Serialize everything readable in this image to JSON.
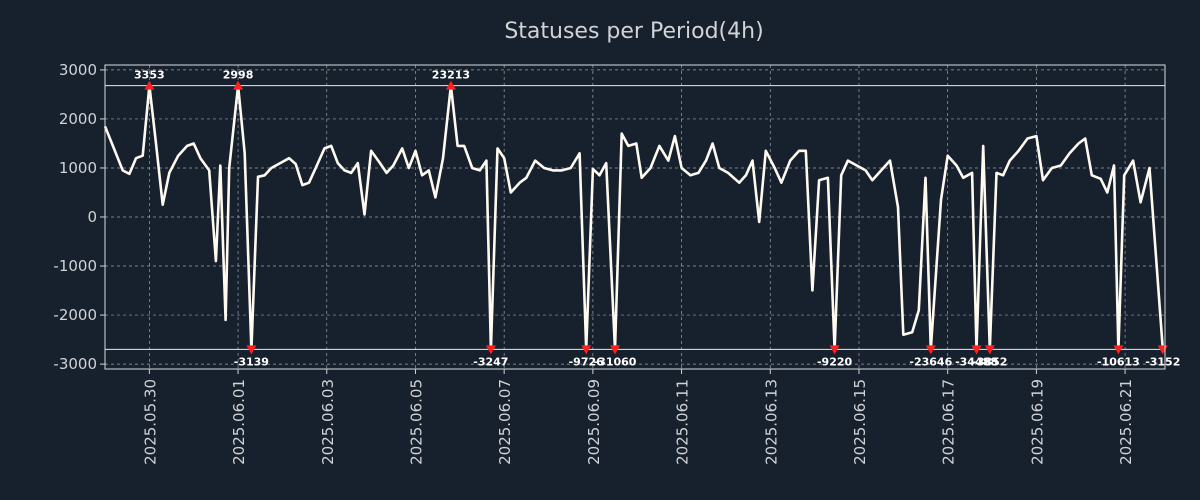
{
  "chart_data": {
    "type": "line",
    "title": "Statuses per Period(4h)",
    "xlabel": "",
    "ylabel": "",
    "ylim": [
      -3100,
      3100
    ],
    "grid": true,
    "yticks": [
      3000,
      2000,
      1000,
      0,
      -1000,
      -2000,
      -3000
    ],
    "ytick_labels": [
      "3000",
      "2000",
      "1000",
      "0",
      "-1000",
      "-2000",
      "-3000"
    ],
    "xlim_days": [
      0,
      23.9
    ],
    "xticks": [
      {
        "day": 1.0,
        "label": "2025.05.30"
      },
      {
        "day": 3.0,
        "label": "2025.06.01"
      },
      {
        "day": 5.0,
        "label": "2025.06.03"
      },
      {
        "day": 7.0,
        "label": "2025.06.05"
      },
      {
        "day": 9.0,
        "label": "2025.06.07"
      },
      {
        "day": 11.0,
        "label": "2025.06.09"
      },
      {
        "day": 13.0,
        "label": "2025.06.11"
      },
      {
        "day": 15.0,
        "label": "2025.06.13"
      },
      {
        "day": 17.0,
        "label": "2025.06.15"
      },
      {
        "day": 19.0,
        "label": "2025.06.17"
      },
      {
        "day": 21.0,
        "label": "2025.06.19"
      },
      {
        "day": 23.0,
        "label": "2025.06.21"
      }
    ],
    "upper_clip": 2680,
    "lower_clip": -2700,
    "series": [
      {
        "name": "statuses",
        "points": [
          [
            0.0,
            1850
          ],
          [
            0.2,
            1400
          ],
          [
            0.4,
            950
          ],
          [
            0.55,
            880
          ],
          [
            0.7,
            1200
          ],
          [
            0.85,
            1250
          ],
          [
            1.0,
            2680
          ],
          [
            1.15,
            1500
          ],
          [
            1.3,
            250
          ],
          [
            1.45,
            900
          ],
          [
            1.65,
            1250
          ],
          [
            1.85,
            1450
          ],
          [
            2.0,
            1500
          ],
          [
            2.15,
            1200
          ],
          [
            2.35,
            950
          ],
          [
            2.5,
            -900
          ],
          [
            2.6,
            1050
          ],
          [
            2.72,
            -2100
          ],
          [
            2.8,
            1000
          ],
          [
            3.0,
            2680
          ],
          [
            3.15,
            1300
          ],
          [
            3.3,
            -2700
          ],
          [
            3.45,
            820
          ],
          [
            3.6,
            850
          ],
          [
            3.75,
            1000
          ],
          [
            3.95,
            1100
          ],
          [
            4.15,
            1200
          ],
          [
            4.3,
            1080
          ],
          [
            4.45,
            650
          ],
          [
            4.6,
            700
          ],
          [
            4.75,
            1000
          ],
          [
            4.95,
            1400
          ],
          [
            5.1,
            1450
          ],
          [
            5.25,
            1100
          ],
          [
            5.4,
            950
          ],
          [
            5.55,
            900
          ],
          [
            5.7,
            1100
          ],
          [
            5.85,
            50
          ],
          [
            6.0,
            1350
          ],
          [
            6.2,
            1100
          ],
          [
            6.35,
            900
          ],
          [
            6.5,
            1050
          ],
          [
            6.7,
            1400
          ],
          [
            6.85,
            1000
          ],
          [
            7.0,
            1350
          ],
          [
            7.15,
            850
          ],
          [
            7.3,
            950
          ],
          [
            7.45,
            400
          ],
          [
            7.62,
            1200
          ],
          [
            7.8,
            2680
          ],
          [
            7.95,
            1450
          ],
          [
            8.1,
            1450
          ],
          [
            8.28,
            1000
          ],
          [
            8.45,
            950
          ],
          [
            8.6,
            1150
          ],
          [
            8.7,
            -2700
          ],
          [
            8.85,
            1400
          ],
          [
            9.0,
            1200
          ],
          [
            9.15,
            500
          ],
          [
            9.35,
            700
          ],
          [
            9.5,
            800
          ],
          [
            9.7,
            1150
          ],
          [
            9.9,
            1000
          ],
          [
            10.1,
            950
          ],
          [
            10.3,
            950
          ],
          [
            10.5,
            1000
          ],
          [
            10.7,
            1300
          ],
          [
            10.85,
            -2700
          ],
          [
            11.0,
            980
          ],
          [
            11.15,
            850
          ],
          [
            11.3,
            1100
          ],
          [
            11.5,
            -2700
          ],
          [
            11.65,
            1700
          ],
          [
            11.8,
            1450
          ],
          [
            11.98,
            1500
          ],
          [
            12.1,
            800
          ],
          [
            12.3,
            1000
          ],
          [
            12.5,
            1450
          ],
          [
            12.7,
            1150
          ],
          [
            12.85,
            1650
          ],
          [
            13.0,
            1000
          ],
          [
            13.2,
            850
          ],
          [
            13.38,
            900
          ],
          [
            13.55,
            1150
          ],
          [
            13.7,
            1500
          ],
          [
            13.85,
            1000
          ],
          [
            14.05,
            900
          ],
          [
            14.3,
            700
          ],
          [
            14.45,
            850
          ],
          [
            14.6,
            1150
          ],
          [
            14.75,
            -100
          ],
          [
            14.9,
            1350
          ],
          [
            15.1,
            1000
          ],
          [
            15.25,
            700
          ],
          [
            15.45,
            1150
          ],
          [
            15.65,
            1350
          ],
          [
            15.8,
            1350
          ],
          [
            15.95,
            -1500
          ],
          [
            16.1,
            750
          ],
          [
            16.3,
            800
          ],
          [
            16.45,
            -2700
          ],
          [
            16.6,
            850
          ],
          [
            16.75,
            1150
          ],
          [
            16.95,
            1050
          ],
          [
            17.15,
            950
          ],
          [
            17.3,
            750
          ],
          [
            17.5,
            950
          ],
          [
            17.7,
            1150
          ],
          [
            17.88,
            200
          ],
          [
            18.0,
            -2400
          ],
          [
            18.2,
            -2350
          ],
          [
            18.35,
            -1900
          ],
          [
            18.5,
            800
          ],
          [
            18.62,
            -2700
          ],
          [
            18.85,
            350
          ],
          [
            19.0,
            1250
          ],
          [
            19.2,
            1050
          ],
          [
            19.35,
            800
          ],
          [
            19.55,
            900
          ],
          [
            19.65,
            -2700
          ],
          [
            19.8,
            1450
          ],
          [
            19.95,
            -2700
          ],
          [
            20.1,
            900
          ],
          [
            20.25,
            850
          ],
          [
            20.4,
            1150
          ],
          [
            20.6,
            1350
          ],
          [
            20.8,
            1600
          ],
          [
            21.0,
            1650
          ],
          [
            21.15,
            750
          ],
          [
            21.35,
            1000
          ],
          [
            21.55,
            1050
          ],
          [
            21.75,
            1300
          ],
          [
            21.95,
            1500
          ],
          [
            22.1,
            1600
          ],
          [
            22.25,
            850
          ],
          [
            22.45,
            780
          ],
          [
            22.6,
            500
          ],
          [
            22.75,
            1050
          ],
          [
            22.85,
            -2700
          ],
          [
            22.98,
            850
          ],
          [
            23.18,
            1150
          ],
          [
            23.35,
            300
          ],
          [
            23.55,
            1000
          ],
          [
            23.85,
            -2700
          ]
        ]
      }
    ],
    "max_markers": [
      {
        "day": 1.0,
        "label": "3353"
      },
      {
        "day": 3.0,
        "label": "2998"
      },
      {
        "day": 7.8,
        "label": "23213"
      }
    ],
    "min_markers": [
      {
        "day": 3.3,
        "label": "-3139"
      },
      {
        "day": 8.7,
        "label": "-3247"
      },
      {
        "day": 10.85,
        "label": "-9726"
      },
      {
        "day": 11.5,
        "label": "-31060"
      },
      {
        "day": 16.45,
        "label": "-9220"
      },
      {
        "day": 18.62,
        "label": "-23646"
      },
      {
        "day": 19.65,
        "label": "-34488"
      },
      {
        "day": 19.95,
        "label": "-3852"
      },
      {
        "day": 22.85,
        "label": "-10613"
      },
      {
        "day": 23.85,
        "label": "-3152"
      }
    ],
    "colors": {
      "background": "#17202d",
      "line": "#fffaf0",
      "marker": "#ff2020",
      "text": "#d0d3d8"
    }
  }
}
